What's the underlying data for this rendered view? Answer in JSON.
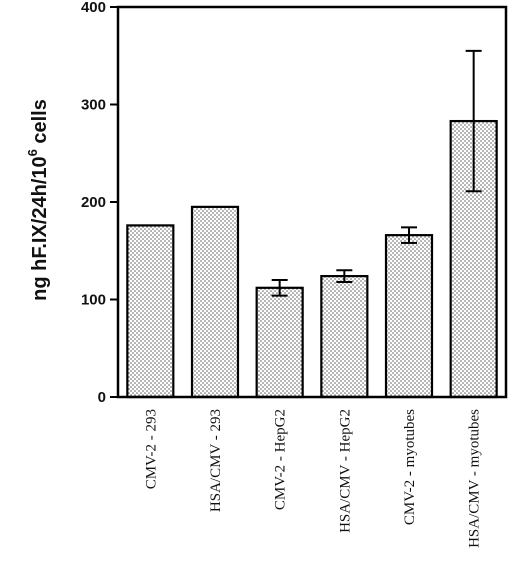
{
  "chart_data": {
    "type": "bar",
    "categories": [
      "CMV-2 - 293",
      "HSA/CMV - 293",
      "CMV-2 - HepG2",
      "HSA/CMV - HepG2",
      "CMV-2 - myotubes",
      "HSA/CMV - myotubes"
    ],
    "values": [
      176,
      195,
      112,
      124,
      166,
      283
    ],
    "error_high": [
      null,
      null,
      120,
      130,
      174,
      355
    ],
    "error_low": [
      null,
      null,
      104,
      118,
      158,
      211
    ],
    "ylabel": {
      "prefix": "ng  hF.IX/24h/10",
      "superscript": "6",
      "suffix": "  cells"
    },
    "ylim": [
      0,
      400
    ],
    "yticks": [
      "0",
      "100",
      "200",
      "300",
      "400"
    ],
    "grid": false,
    "bar_fill": "dotted",
    "colors": {
      "bar_edge": "#000000",
      "dots": "#555555",
      "background": "#ffffff"
    }
  }
}
